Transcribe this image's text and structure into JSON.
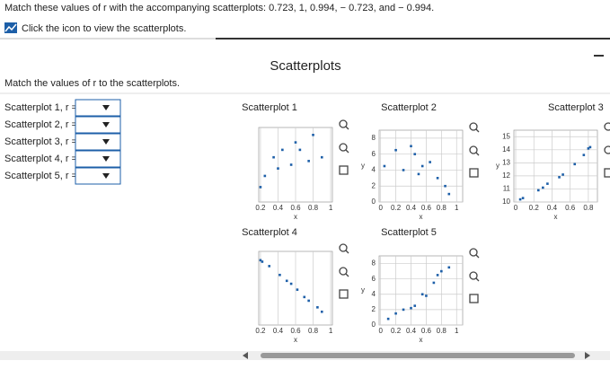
{
  "header": {
    "question": "Match these values of r with the accompanying scatterplots: 0.723, 1, 0.994, − 0.723, and − 0.994.",
    "hint": "Click the icon to view the scatterplots."
  },
  "panel": {
    "title": "Scatterplots",
    "instruction": "Match the values of r to the scatterplots."
  },
  "matches": [
    "Scatterplot 1, r =",
    "Scatterplot 2, r =",
    "Scatterplot 3, r =",
    "Scatterplot 4, r =",
    "Scatterplot 5, r ="
  ],
  "plots": [
    {
      "title": "Scatterplot 1",
      "xlabel": "x",
      "xlim": [
        0.18,
        1.02
      ],
      "ylim": [
        0,
        10
      ],
      "xticks": [
        0.2,
        0.4,
        0.6,
        0.8,
        1
      ],
      "yticks": [],
      "x": [
        0.2,
        0.25,
        0.35,
        0.4,
        0.45,
        0.55,
        0.6,
        0.65,
        0.75,
        0.8,
        0.9
      ],
      "y": [
        2,
        3.5,
        6,
        4.5,
        7,
        5,
        8,
        7,
        5.5,
        9,
        6
      ]
    },
    {
      "title": "Scatterplot 2",
      "xlabel": "x",
      "ylabel": "y",
      "xlim": [
        -0.02,
        1.08
      ],
      "ylim": [
        0,
        9
      ],
      "xticks": [
        0,
        0.2,
        0.4,
        0.6,
        0.8,
        1
      ],
      "yticks": [
        0,
        2,
        4,
        6,
        8
      ],
      "x": [
        0.05,
        0.2,
        0.3,
        0.4,
        0.45,
        0.5,
        0.55,
        0.65,
        0.75,
        0.85,
        0.9
      ],
      "y": [
        4.5,
        6.5,
        4,
        7,
        6,
        3.5,
        4.5,
        5,
        3,
        2,
        1
      ]
    },
    {
      "title": "Scatterplot 3",
      "xlabel": "x",
      "ylabel": "y",
      "xlim": [
        -0.02,
        0.9
      ],
      "ylim": [
        10,
        15.5
      ],
      "xticks": [
        0,
        0.2,
        0.4,
        0.6,
        0.8
      ],
      "yticks": [
        10,
        11,
        12,
        13,
        14,
        15
      ],
      "x": [
        0.05,
        0.08,
        0.25,
        0.3,
        0.35,
        0.48,
        0.52,
        0.65,
        0.75,
        0.8,
        0.82
      ],
      "y": [
        10.2,
        10.3,
        10.9,
        11.1,
        11.4,
        11.9,
        12.1,
        12.9,
        13.6,
        14.1,
        14.2
      ]
    },
    {
      "title": "Scatterplot 4",
      "xlabel": "x",
      "xlim": [
        0.18,
        1.02
      ],
      "ylim": [
        0,
        10
      ],
      "xticks": [
        0.2,
        0.4,
        0.6,
        0.8,
        1
      ],
      "yticks": [],
      "x": [
        0.2,
        0.22,
        0.3,
        0.42,
        0.5,
        0.55,
        0.62,
        0.7,
        0.75,
        0.85,
        0.9
      ],
      "y": [
        8.8,
        8.6,
        8,
        6.8,
        6,
        5.6,
        4.8,
        3.8,
        3.3,
        2.4,
        1.8
      ]
    },
    {
      "title": "Scatterplot 5",
      "xlabel": "x",
      "ylabel": "y",
      "xlim": [
        -0.02,
        1.08
      ],
      "ylim": [
        0,
        9
      ],
      "xticks": [
        0,
        0.2,
        0.4,
        0.6,
        0.8,
        1
      ],
      "yticks": [
        0,
        2,
        4,
        6,
        8
      ],
      "x": [
        0.1,
        0.2,
        0.3,
        0.4,
        0.45,
        0.55,
        0.6,
        0.7,
        0.75,
        0.8,
        0.9
      ],
      "y": [
        0.8,
        1.5,
        2,
        2.2,
        2.5,
        4,
        3.8,
        5.5,
        6.5,
        7,
        7.5
      ]
    }
  ]
}
